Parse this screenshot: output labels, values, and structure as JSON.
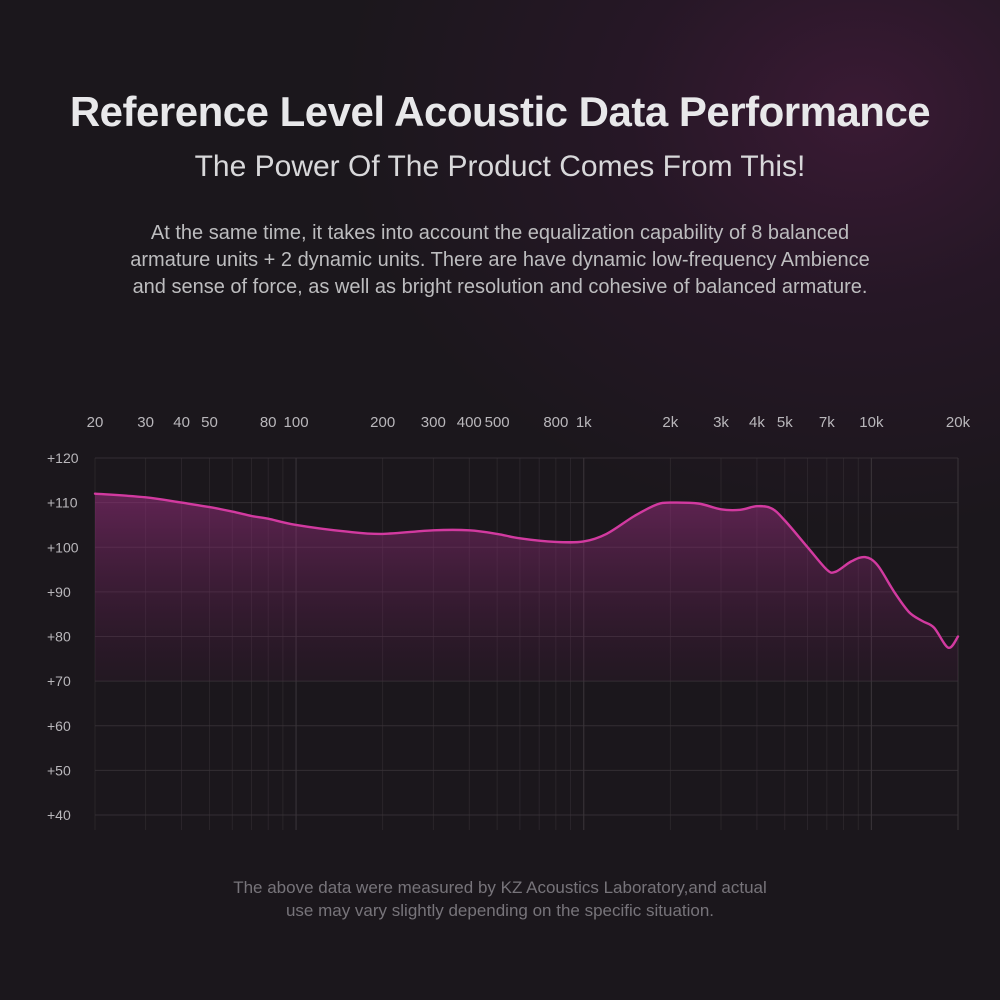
{
  "header": {
    "title": "Reference Level Acoustic Data Performance",
    "subtitle": "The Power Of The Product Comes From This!"
  },
  "description": {
    "lines": [
      "At the same time, it takes into account the equalization capability of 8 balanced",
      "armature units + 2 dynamic units. There are have dynamic low-frequency Ambience",
      "and sense of force, as well as bright resolution and cohesive of balanced armature."
    ]
  },
  "footnote": {
    "lines": [
      "The above data were measured by KZ Acoustics Laboratory,and actual",
      "use may vary slightly depending on the specific situation."
    ]
  },
  "colors": {
    "curve": "#d23aa0",
    "fill_top": "#9a2f80",
    "grid": "#3a3439"
  },
  "chart_data": {
    "type": "line",
    "title": "",
    "xlabel": "",
    "ylabel": "",
    "x_scale": "log",
    "xlim": [
      20,
      20000
    ],
    "ylim": [
      40,
      120
    ],
    "grid": true,
    "x_ticks": [
      {
        "value": 20,
        "label": "20"
      },
      {
        "value": 30,
        "label": "30"
      },
      {
        "value": 40,
        "label": "40"
      },
      {
        "value": 50,
        "label": "50"
      },
      {
        "value": 80,
        "label": "80"
      },
      {
        "value": 100,
        "label": "100"
      },
      {
        "value": 200,
        "label": "200"
      },
      {
        "value": 300,
        "label": "300"
      },
      {
        "value": 400,
        "label": "400"
      },
      {
        "value": 500,
        "label": "500"
      },
      {
        "value": 800,
        "label": "800"
      },
      {
        "value": 1000,
        "label": "1k"
      },
      {
        "value": 2000,
        "label": "2k"
      },
      {
        "value": 3000,
        "label": "3k"
      },
      {
        "value": 4000,
        "label": "4k"
      },
      {
        "value": 5000,
        "label": "5k"
      },
      {
        "value": 7000,
        "label": "7k"
      },
      {
        "value": 10000,
        "label": "10k"
      },
      {
        "value": 20000,
        "label": "20k"
      }
    ],
    "y_ticks": [
      {
        "value": 120,
        "label": "+120"
      },
      {
        "value": 110,
        "label": "+110"
      },
      {
        "value": 100,
        "label": "+100"
      },
      {
        "value": 90,
        "label": "+90"
      },
      {
        "value": 80,
        "label": "+80"
      },
      {
        "value": 70,
        "label": "+70"
      },
      {
        "value": 60,
        "label": "+60"
      },
      {
        "value": 50,
        "label": "+50"
      },
      {
        "value": 40,
        "label": "+40"
      }
    ],
    "series": [
      {
        "points": [
          [
            20,
            112
          ],
          [
            30,
            111.2
          ],
          [
            40,
            110
          ],
          [
            50,
            109
          ],
          [
            60,
            108
          ],
          [
            70,
            107
          ],
          [
            80,
            106.4
          ],
          [
            100,
            105
          ],
          [
            150,
            103.5
          ],
          [
            200,
            103
          ],
          [
            300,
            103.8
          ],
          [
            400,
            103.8
          ],
          [
            500,
            103
          ],
          [
            600,
            102
          ],
          [
            800,
            101.2
          ],
          [
            1000,
            101.3
          ],
          [
            1200,
            103
          ],
          [
            1500,
            107
          ],
          [
            1800,
            109.6
          ],
          [
            2000,
            110
          ],
          [
            2500,
            109.8
          ],
          [
            3000,
            108.5
          ],
          [
            3500,
            108.4
          ],
          [
            4000,
            109.2
          ],
          [
            4500,
            108.7
          ],
          [
            5000,
            106
          ],
          [
            6000,
            100
          ],
          [
            7000,
            95
          ],
          [
            7500,
            94.5
          ],
          [
            8500,
            96.8
          ],
          [
            9500,
            97.8
          ],
          [
            10500,
            96
          ],
          [
            12000,
            90
          ],
          [
            13500,
            85.5
          ],
          [
            15000,
            83.5
          ],
          [
            16500,
            82
          ],
          [
            18500,
            77.5
          ],
          [
            20000,
            80
          ]
        ]
      }
    ]
  }
}
